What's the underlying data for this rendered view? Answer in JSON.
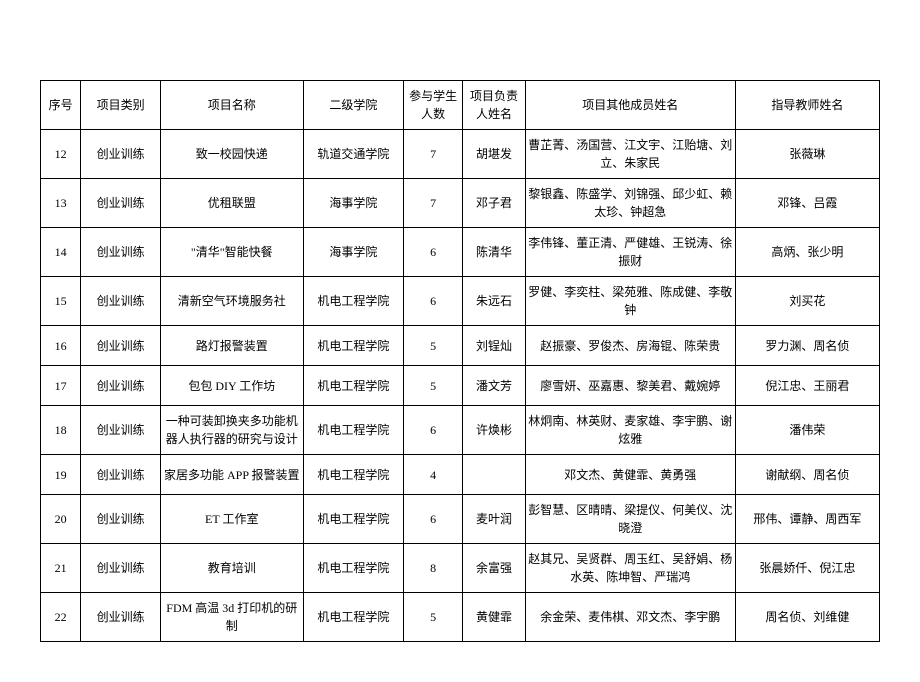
{
  "table": {
    "columns": [
      "序号",
      "项目类别",
      "项目名称",
      "二级学院",
      "参与学生人数",
      "项目负责人姓名",
      "项目其他成员姓名",
      "指导教师姓名"
    ],
    "rows": [
      [
        "12",
        "创业训练",
        "致一校园快递",
        "轨道交通学院",
        "7",
        "胡堪发",
        "曹芷菁、汤国营、江文宇、江贻塘、刘立、朱家民",
        "张薇琳"
      ],
      [
        "13",
        "创业训练",
        "优租联盟",
        "海事学院",
        "7",
        "邓子君",
        "黎银鑫、陈盛学、刘锦强、邱少虹、赖太珍、钟超急",
        "邓锋、吕霞"
      ],
      [
        "14",
        "创业训练",
        "\"清华\"智能快餐",
        "海事学院",
        "6",
        "陈清华",
        "李伟锋、董正清、严健雄、王锐涛、徐振财",
        "高炳、张少明"
      ],
      [
        "15",
        "创业训练",
        "清新空气环境服务社",
        "机电工程学院",
        "6",
        "朱远石",
        "罗健、李奕柱、梁苑雅、陈成健、李敬钟",
        "刘买花"
      ],
      [
        "16",
        "创业训练",
        "路灯报警装置",
        "机电工程学院",
        "5",
        "刘锃灿",
        "赵振豪、罗俊杰、房海锟、陈荣贵",
        "罗力渊、周名侦"
      ],
      [
        "17",
        "创业训练",
        "包包 DIY 工作坊",
        "机电工程学院",
        "5",
        "潘文芳",
        "廖雪妍、巫嘉惠、黎美君、戴婉婷",
        "倪江忠、王丽君"
      ],
      [
        "18",
        "创业训练",
        "一种可装卸换夹多功能机器人执行器的研究与设计",
        "机电工程学院",
        "6",
        "许焕彬",
        "林炯南、林英财、麦家雄、李宇鹏、谢炫雅",
        "潘伟荣"
      ],
      [
        "19",
        "创业训练",
        "家居多功能 APP 报警装置",
        "机电工程学院",
        "4",
        "",
        "邓文杰、黄健霏、黄勇强",
        "谢献纲、周名侦"
      ],
      [
        "20",
        "创业训练",
        "ET 工作室",
        "机电工程学院",
        "6",
        "麦叶润",
        "彭智慧、区晴晴、梁提仪、何美仪、沈晓澄",
        "邢伟、谭静、周西军"
      ],
      [
        "21",
        "创业训练",
        "教育培训",
        "机电工程学院",
        "8",
        "余富强",
        "赵其兄、吴贤群、周玉红、吴舒娟、杨水英、陈坤智、严瑞鸿",
        "张晨娇仟、倪江忠"
      ],
      [
        "22",
        "创业训练",
        "FDM 高温 3d 打印机的研制",
        "机电工程学院",
        "5",
        "黄健霏",
        "余金荣、麦伟棋、邓文杰、李宇鹏",
        "周名侦、刘维健"
      ]
    ],
    "column_classes": [
      "col-0",
      "col-1",
      "col-2",
      "col-3",
      "col-4",
      "col-5",
      "col-6",
      "col-7"
    ]
  }
}
